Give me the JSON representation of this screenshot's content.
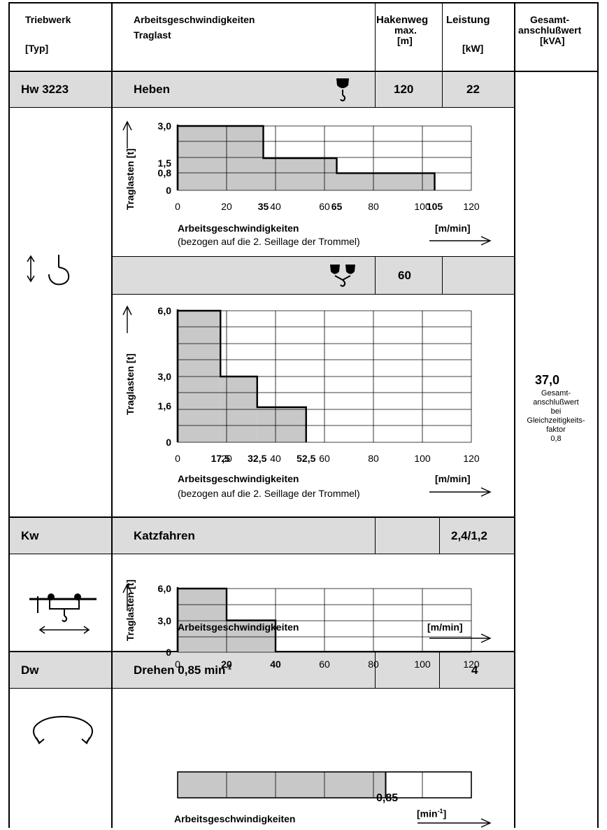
{
  "header": {
    "col1": "Triebwerk",
    "col1_unit": "[Typ]",
    "col2": "Arbeitsgeschwindigkeiten",
    "col2_sub": "Traglast",
    "col3": "Hakenweg",
    "col3_sub": "max.",
    "col3_unit": "[m]",
    "col4": "Leistung",
    "col4_unit": "[kW]",
    "col5": "Gesamt-",
    "col5_sub": "anschlußwert",
    "col5_unit": "[kVA]"
  },
  "rows": {
    "hw": {
      "type": "Hw 3223",
      "name": "Heben",
      "hakenweg": "120",
      "leistung": "22",
      "hakenweg2": "60"
    },
    "kw": {
      "type": "Kw",
      "name": "Katzfahren",
      "leistung": "2,4/1,2"
    },
    "dw": {
      "type": "Dw",
      "name": "Drehen  0,85 min",
      "name_sup": "-1",
      "leistung": "4"
    }
  },
  "total": {
    "value": "37,0",
    "line1": "Gesamt-",
    "line2": "anschlußwert",
    "line3": "bei",
    "line4": "Gleichzeitigkeits-",
    "line5": "faktor",
    "line6": "0,8"
  },
  "labels": {
    "xaxis": "Arbeitsgeschwindigkeiten",
    "yaxis": "Traglasten  [t]",
    "unit": "[m/min]",
    "note": "(bezogen auf die 2. Seillage der Trommel)",
    "dw_unit_base": "[min",
    "dw_unit_sup": "-1",
    "dw_unit_end": "]"
  },
  "chart_data": [
    {
      "type": "area",
      "id": "heben-1",
      "xlabel": "Arbeitsgeschwindigkeiten",
      "ylabel": "Traglasten  [t]",
      "xlim": [
        0,
        120
      ],
      "x_ticks": [
        "0",
        "20",
        "35",
        "40",
        "60",
        "65",
        "80",
        "100",
        "105",
        "120"
      ],
      "y_ticks": [
        "3,0",
        "1,5",
        "0,8",
        "0"
      ],
      "steps": [
        {
          "x": [
            0,
            35
          ],
          "y": 3.0
        },
        {
          "x": [
            35,
            65
          ],
          "y": 1.5
        },
        {
          "x": [
            65,
            105
          ],
          "y": 0.8
        }
      ]
    },
    {
      "type": "area",
      "id": "heben-2",
      "xlabel": "Arbeitsgeschwindigkeiten",
      "ylabel": "Traglasten  [t]",
      "xlim": [
        0,
        120
      ],
      "x_ticks": [
        "0",
        "17,5",
        "20",
        "32,5",
        "40",
        "52,5",
        "60",
        "80",
        "100",
        "120"
      ],
      "y_ticks": [
        "6,0",
        "3,0",
        "1,6",
        "0"
      ],
      "steps": [
        {
          "x": [
            0,
            17.5
          ],
          "y": 6.0
        },
        {
          "x": [
            17.5,
            32.5
          ],
          "y": 3.0
        },
        {
          "x": [
            32.5,
            52.5
          ],
          "y": 1.6
        }
      ]
    },
    {
      "type": "area",
      "id": "katzfahren",
      "xlabel": "Arbeitsgeschwindigkeiten",
      "ylabel": "Traglasten  [t]",
      "xlim": [
        0,
        120
      ],
      "x_ticks": [
        "0",
        "20",
        "40",
        "60",
        "80",
        "100",
        "120"
      ],
      "y_ticks": [
        "6,0",
        "3,0",
        "0"
      ],
      "steps": [
        {
          "x": [
            0,
            20
          ],
          "y": 6.0
        },
        {
          "x": [
            20,
            40
          ],
          "y": 3.0
        }
      ]
    },
    {
      "type": "bar",
      "id": "drehen",
      "xlabel": "Arbeitsgeschwindigkeiten",
      "xlim": [
        0,
        1.2
      ],
      "value": 0.85,
      "value_label": "0,85"
    }
  ]
}
